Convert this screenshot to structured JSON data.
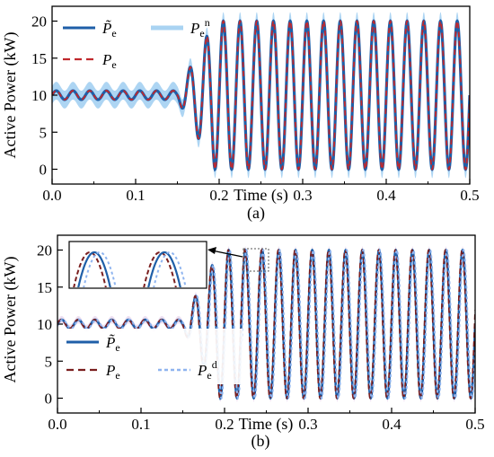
{
  "chart_data": [
    {
      "type": "line",
      "panel_label": "(a)",
      "xlabel": "Time (s)",
      "ylabel": "Active Power (kW)",
      "xlim": [
        0.0,
        0.5
      ],
      "ylim": [
        -2,
        22
      ],
      "x_ticks": [
        "0.0",
        "0.1",
        "0.2",
        "0.3",
        "0.4",
        "0.5"
      ],
      "y_ticks": [
        "0",
        "5",
        "10",
        "15",
        "20"
      ],
      "grid": false,
      "legend_position": "top-left",
      "signal": {
        "frequency_hz": 50,
        "steady_value": 10,
        "pre_ripple_amplitude": 0.6,
        "disturbance_start_s": 0.15,
        "post_amplitude": 10,
        "post_center": 10,
        "noise_band": 1.2
      },
      "series": [
        {
          "name": "P̃e",
          "legend_main": "P̃",
          "legend_sub": "e",
          "legend_sup": "",
          "color": "#1f5fa8",
          "style": "solid"
        },
        {
          "name": "Pe^n",
          "legend_main": "P",
          "legend_sub": "e",
          "legend_sup": "n",
          "color": "#a9d3f2",
          "style": "band"
        },
        {
          "name": "Pe",
          "legend_main": "P",
          "legend_sub": "e",
          "legend_sup": "",
          "color": "#c0282d",
          "style": "dashed"
        }
      ]
    },
    {
      "type": "line",
      "panel_label": "(b)",
      "xlabel": "Time (s)",
      "ylabel": "Active Power (kW)",
      "xlim": [
        0.0,
        0.5
      ],
      "ylim": [
        -2,
        22
      ],
      "x_ticks": [
        "0.0",
        "0.1",
        "0.2",
        "0.3",
        "0.4",
        "0.5"
      ],
      "y_ticks": [
        "0",
        "5",
        "10",
        "15",
        "20"
      ],
      "grid": false,
      "legend_position": "bottom-left",
      "signal": {
        "frequency_hz": 50,
        "steady_value": 10,
        "pre_ripple_amplitude": 0.6,
        "disturbance_start_s": 0.15,
        "post_amplitude": 10,
        "post_center": 10,
        "delay_s": 0.0012
      },
      "inset": {
        "type": "zoom",
        "description_points": "two peaks near 20 kW"
      },
      "series": [
        {
          "name": "P̃e",
          "legend_main": "P̃",
          "legend_sub": "e",
          "legend_sup": "",
          "color": "#1f5fa8",
          "style": "solid"
        },
        {
          "name": "Pe",
          "legend_main": "P",
          "legend_sub": "e",
          "legend_sup": "",
          "color": "#7a1e1e",
          "style": "dashed"
        },
        {
          "name": "Pe^d",
          "legend_main": "P",
          "legend_sub": "e",
          "legend_sup": "d",
          "color": "#8fb4ef",
          "style": "dotted"
        }
      ]
    }
  ]
}
